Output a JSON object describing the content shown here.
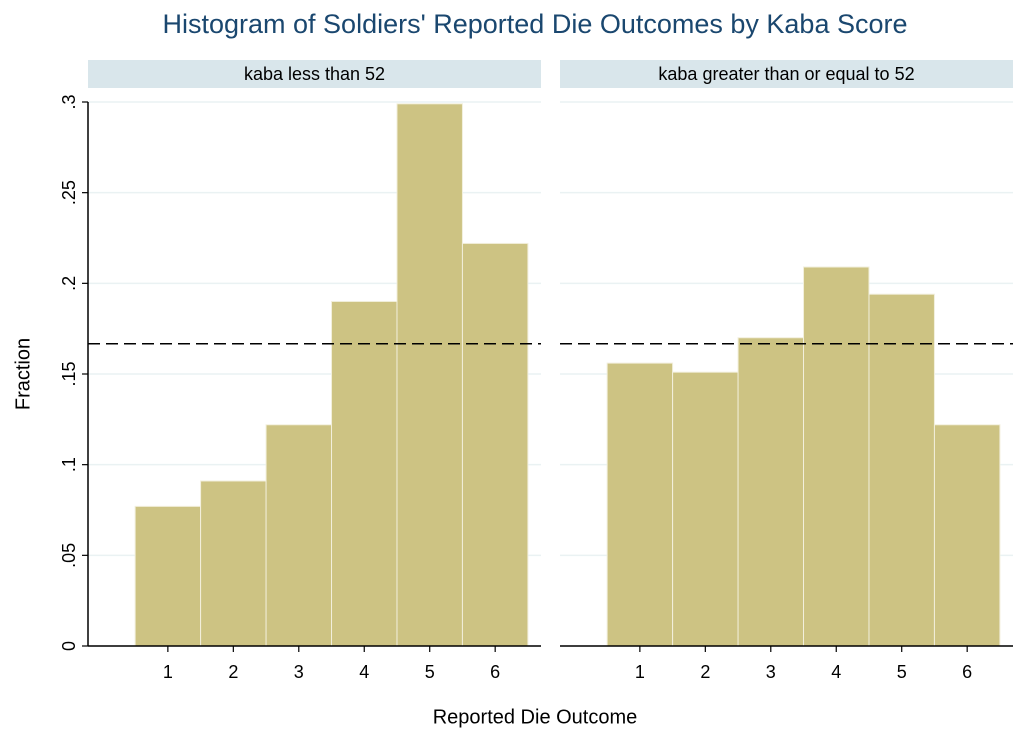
{
  "title": "Histogram of Soldiers' Reported Die Outcomes by Kaba Score",
  "xlabel": "Reported Die Outcome",
  "ylabel": "Fraction",
  "ylim": [
    0,
    0.3
  ],
  "yticks": [
    0,
    {
      "value": 0.05,
      "label": ".05"
    },
    {
      "value": 0.1,
      "label": ".1"
    },
    {
      "value": 0.15,
      "label": ".15"
    },
    {
      "value": 0.2,
      "label": ".2"
    },
    {
      "value": 0.25,
      "label": ".25"
    },
    {
      "value": 0.3,
      "label": ".3"
    }
  ],
  "chart_data": [
    {
      "type": "histogram",
      "title": "kaba less than 52",
      "bins": [
        0.5,
        1.5,
        2.5,
        3.5,
        4.5,
        5.5,
        6.5
      ],
      "values": [
        0.077,
        0.091,
        0.122,
        0.19,
        0.299,
        0.222
      ],
      "xlim": [
        -0.22,
        6.7
      ],
      "xticks": [
        1,
        2,
        3,
        4,
        5,
        6
      ],
      "reference_line": 0.1667,
      "color": "#cdc383",
      "grid": true
    },
    {
      "type": "histogram",
      "title": "kaba greater than or equal to 52",
      "bins": [
        0.5,
        1.5,
        2.5,
        3.5,
        4.5,
        5.5,
        6.5
      ],
      "values": [
        0.156,
        0.151,
        0.17,
        0.209,
        0.194,
        0.122
      ],
      "xlim": [
        -0.22,
        6.7
      ],
      "xticks": [
        1,
        2,
        3,
        4,
        5,
        6
      ],
      "reference_line": 0.1667,
      "color": "#cdc383",
      "grid": true
    }
  ]
}
